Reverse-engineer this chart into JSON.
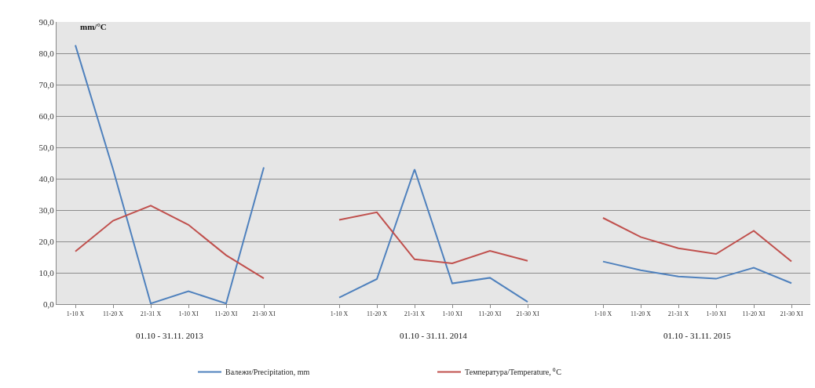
{
  "chart_data": {
    "type": "line",
    "ylabel": "mm/°C",
    "categories": [
      "1-10 X",
      "11-20 X",
      "21-31 X",
      "1-10 XI",
      "11-20 XI",
      "21-30 XI",
      null,
      "1-10 X",
      "11-20 X",
      "21-31 X",
      "1-10 XI",
      "11-20 XI",
      "21-30 XI",
      null,
      "1-10 X",
      "11-20 X",
      "21-31 X",
      "1-10 XI",
      "11-20 XI",
      "21-30 XI"
    ],
    "series": [
      {
        "name": "Валежи/Precipitation, mm",
        "color": "#4f81bd",
        "values": [
          82.6,
          43,
          0.2,
          4.1,
          0.2,
          43.6,
          null,
          2.1,
          8,
          43,
          6.6,
          8.4,
          0.7,
          null,
          13.6,
          10.8,
          8.8,
          8.1,
          11.6,
          6.7
        ]
      },
      {
        "name": "Температура/Temperature, ⁰C",
        "color": "#c0504d",
        "values": [
          16.8,
          26.6,
          31.4,
          25.3,
          15.6,
          8.2,
          null,
          26.9,
          29.3,
          14.3,
          13,
          17,
          13.8,
          null,
          27.5,
          21.4,
          17.8,
          16,
          23.4,
          13.6
        ]
      }
    ],
    "annotations": [
      "01.10 - 31.11. 2013",
      "01.10 - 31.11. 2014",
      "01.10 - 31.11. 2015"
    ],
    "ylim": [
      0,
      90
    ],
    "yticks": [
      {
        "value": 0,
        "label": "0,0"
      },
      {
        "value": 10,
        "label": "10,0"
      },
      {
        "value": 20,
        "label": "20,0"
      },
      {
        "value": 30,
        "label": "30,0"
      },
      {
        "value": 40,
        "label": "40,0"
      },
      {
        "value": 50,
        "label": "50,0"
      },
      {
        "value": 60,
        "label": "60,0"
      },
      {
        "value": 70,
        "label": "70,0"
      },
      {
        "value": 80,
        "label": "80,0"
      },
      {
        "value": 90,
        "label": "90,0"
      }
    ],
    "grid": "y",
    "legend": "bottom",
    "marker": "none",
    "line_style": "solid"
  }
}
